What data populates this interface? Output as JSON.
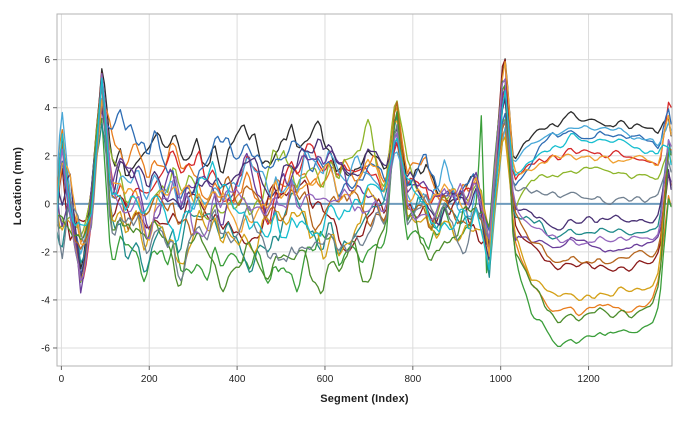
{
  "chart_data": {
    "type": "line",
    "title": "",
    "xlabel": "Segment (Index)",
    "ylabel": "Location (mm)",
    "xlim": [
      -10,
      1390
    ],
    "ylim": [
      -6.75,
      7.9
    ],
    "x_ticks": [
      0,
      200,
      400,
      600,
      800,
      1000,
      1200
    ],
    "y_ticks": [
      -6,
      -4,
      -2,
      0,
      2,
      4,
      6
    ],
    "grid": true,
    "legend": "none",
    "style": {
      "grid_color": "#dcdcdc",
      "frame_color": "#b3b3b3",
      "zero_line_color": "#6f9bbd",
      "tick_color": "#666666",
      "text_color": "#1f1f1f",
      "background": "#ffffff"
    },
    "description": "Approximately 18 overlapping noisy traces of location deviation (mm) versus segment index. Collective features: spread start values at x=0 (up to +6.2), dip near x=45 to about -4.5, sharp collective spike near x=93 reaching up to +6.7, noisy band between roughly -3 and +4 from x=120 to 950, collective spike near x=762 up to +4.8, dip near x=975, tall collective spike near x=1008 up to +6.5, then smooth fanned-out bands from +3.5 down to -5.5 between x=1040 and 1360, ending with a sharp upward rise near x=1383.",
    "generation": {
      "common_seed": 20240601,
      "step": 6,
      "smooth_scale": 1.7,
      "dip1": {
        "x": 45,
        "base": -1.2,
        "range": 3.2
      },
      "spike1": {
        "x": 93,
        "base": 3.4,
        "range": 3.2
      },
      "spike2": {
        "x": 762,
        "base": 2.3,
        "range": 2.5
      },
      "dip2": {
        "x": 974,
        "base": -0.8,
        "range": 2.2
      },
      "spike3": {
        "x": 1008,
        "base": 3.2,
        "range": 3.3
      },
      "end_rise": {
        "x": 1383,
        "base": 2.6,
        "post_frac": 0.35,
        "range": 2.4
      },
      "mid_band": {
        "x0": 150,
        "x1": 700,
        "step": 55,
        "jitter": 2.6
      },
      "fan_keys": [
        1030,
        1070,
        1120,
        1180,
        1240,
        1300,
        1345,
        1362
      ],
      "wiggle": [
        {
          "x0": -10,
          "x1": 120,
          "a": 0.55
        },
        {
          "x0": 120,
          "x1": 600,
          "a": 0.8
        },
        {
          "x0": 600,
          "x1": 960,
          "a": 0.7
        },
        {
          "x0": 960,
          "x1": 1035,
          "a": 0.45
        },
        {
          "x0": 1035,
          "x1": 1360,
          "a": 0.2
        },
        {
          "x0": 1360,
          "x1": 1392,
          "a": 0.3
        }
      ]
    },
    "series": [
      {
        "name": "series-01",
        "color": "#2b2b2b",
        "seed": 11,
        "pre": 2.2,
        "post": 3.5
      },
      {
        "name": "series-02",
        "color": "#e87d1e",
        "seed": 22,
        "pre": 1.6,
        "post": -4.4
      },
      {
        "name": "series-03",
        "color": "#d62728",
        "seed": 33,
        "pre": 0.8,
        "post": 2.0
      },
      {
        "name": "series-04",
        "color": "#8b1a1a",
        "seed": 44,
        "pre": -0.6,
        "post": -2.6
      },
      {
        "name": "series-05",
        "color": "#3a9e3a",
        "seed": 55,
        "pre": -1.8,
        "post": -5.5,
        "spike960": 4.0
      },
      {
        "name": "series-06",
        "color": "#8db52a",
        "seed": 66,
        "pre": 1.0,
        "post": 1.4
      },
      {
        "name": "series-07",
        "color": "#2e6db4",
        "seed": 77,
        "pre": 1.9,
        "post": 2.9
      },
      {
        "name": "series-08",
        "color": "#49a8d8",
        "seed": 88,
        "pre": 1.2,
        "post": 3.0
      },
      {
        "name": "series-09",
        "color": "#1f8a8a",
        "seed": 99,
        "pre": -0.9,
        "post": -1.2
      },
      {
        "name": "series-10",
        "color": "#6a3d9a",
        "seed": 110,
        "pre": 0.5,
        "post": -1.8
      },
      {
        "name": "series-11",
        "color": "#483074",
        "seed": 121,
        "pre": 1.4,
        "post": -0.8
      },
      {
        "name": "series-12",
        "color": "#d4a017",
        "seed": 132,
        "pre": -1.4,
        "post": -3.8
      },
      {
        "name": "series-13",
        "color": "#b5651d",
        "seed": 143,
        "pre": -0.3,
        "post": -2.2
      },
      {
        "name": "series-14",
        "color": "#f0a030",
        "seed": 154,
        "pre": 0.9,
        "post": 1.9
      },
      {
        "name": "series-15",
        "color": "#4c8c2b",
        "seed": 165,
        "pre": -2.0,
        "post": -4.6
      },
      {
        "name": "series-16",
        "color": "#708090",
        "seed": 176,
        "pre": -1.1,
        "post": 0.2
      },
      {
        "name": "series-17",
        "color": "#9467bd",
        "seed": 187,
        "pre": -0.2,
        "post": -1.5
      },
      {
        "name": "series-18",
        "color": "#17becf",
        "seed": 198,
        "pre": 0.1,
        "post": 2.5
      }
    ]
  }
}
